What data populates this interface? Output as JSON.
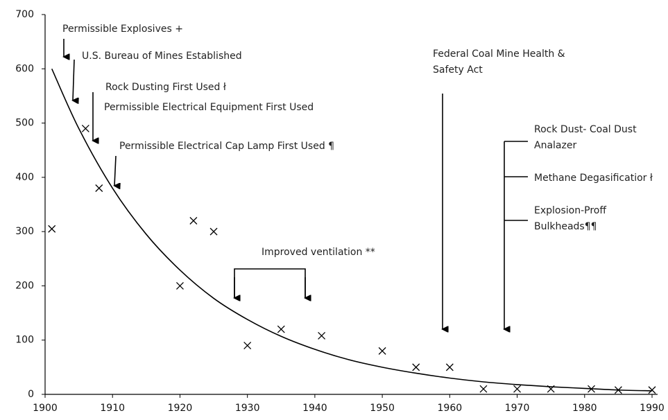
{
  "chart_data": {
    "type": "scatter",
    "color": "#000000",
    "xlim": [
      1900,
      1990
    ],
    "ylim": [
      0,
      700
    ],
    "xticks": [
      1900,
      1910,
      1920,
      1930,
      1940,
      1950,
      1960,
      1970,
      1980,
      1990
    ],
    "yticks": [
      0,
      100,
      200,
      300,
      400,
      500,
      600,
      700
    ],
    "points": {
      "x": [
        1901,
        1906,
        1908,
        1920,
        1922,
        1925,
        1930,
        1935,
        1941,
        1950,
        1955,
        1960,
        1965,
        1970,
        1975,
        1981,
        1985,
        1990
      ],
      "values": [
        305,
        490,
        380,
        200,
        320,
        300,
        90,
        120,
        108,
        80,
        50,
        50,
        10,
        10,
        10,
        10,
        8,
        8
      ]
    },
    "trend": {
      "x": [
        1901,
        1905,
        1910,
        1915,
        1920,
        1925,
        1930,
        1935,
        1940,
        1945,
        1950,
        1955,
        1960,
        1965,
        1970,
        1975,
        1980,
        1985,
        1990
      ],
      "values": [
        600,
        490,
        380,
        295,
        229,
        177,
        138,
        107,
        83,
        64,
        50,
        39,
        30,
        23,
        18,
        14,
        11,
        8,
        6.5
      ]
    },
    "annotations": [
      {
        "lines": [
          "Permissible Explosives +"
        ]
      },
      {
        "lines": [
          "U.S. Bureau of Mines Established"
        ]
      },
      {
        "lines": [
          "Rock Dusting First Used ł"
        ]
      },
      {
        "lines": [
          "Permissible Electrical Equipment First Used"
        ]
      },
      {
        "lines": [
          "Permissible Electrical  Cap Lamp First Used  ¶"
        ]
      },
      {
        "lines": [
          "Improved ventilation **"
        ]
      },
      {
        "lines": [
          "Federal Coal Mine Health &",
          "Safety Act"
        ]
      },
      {
        "lines": [
          "Rock Dust- Coal Dust",
          "Analazer"
        ]
      },
      {
        "lines": [
          "Methane Degasificatior ł"
        ]
      },
      {
        "lines": [
          "Explosion-Proff",
          "Bulkheads¶¶"
        ]
      }
    ]
  }
}
